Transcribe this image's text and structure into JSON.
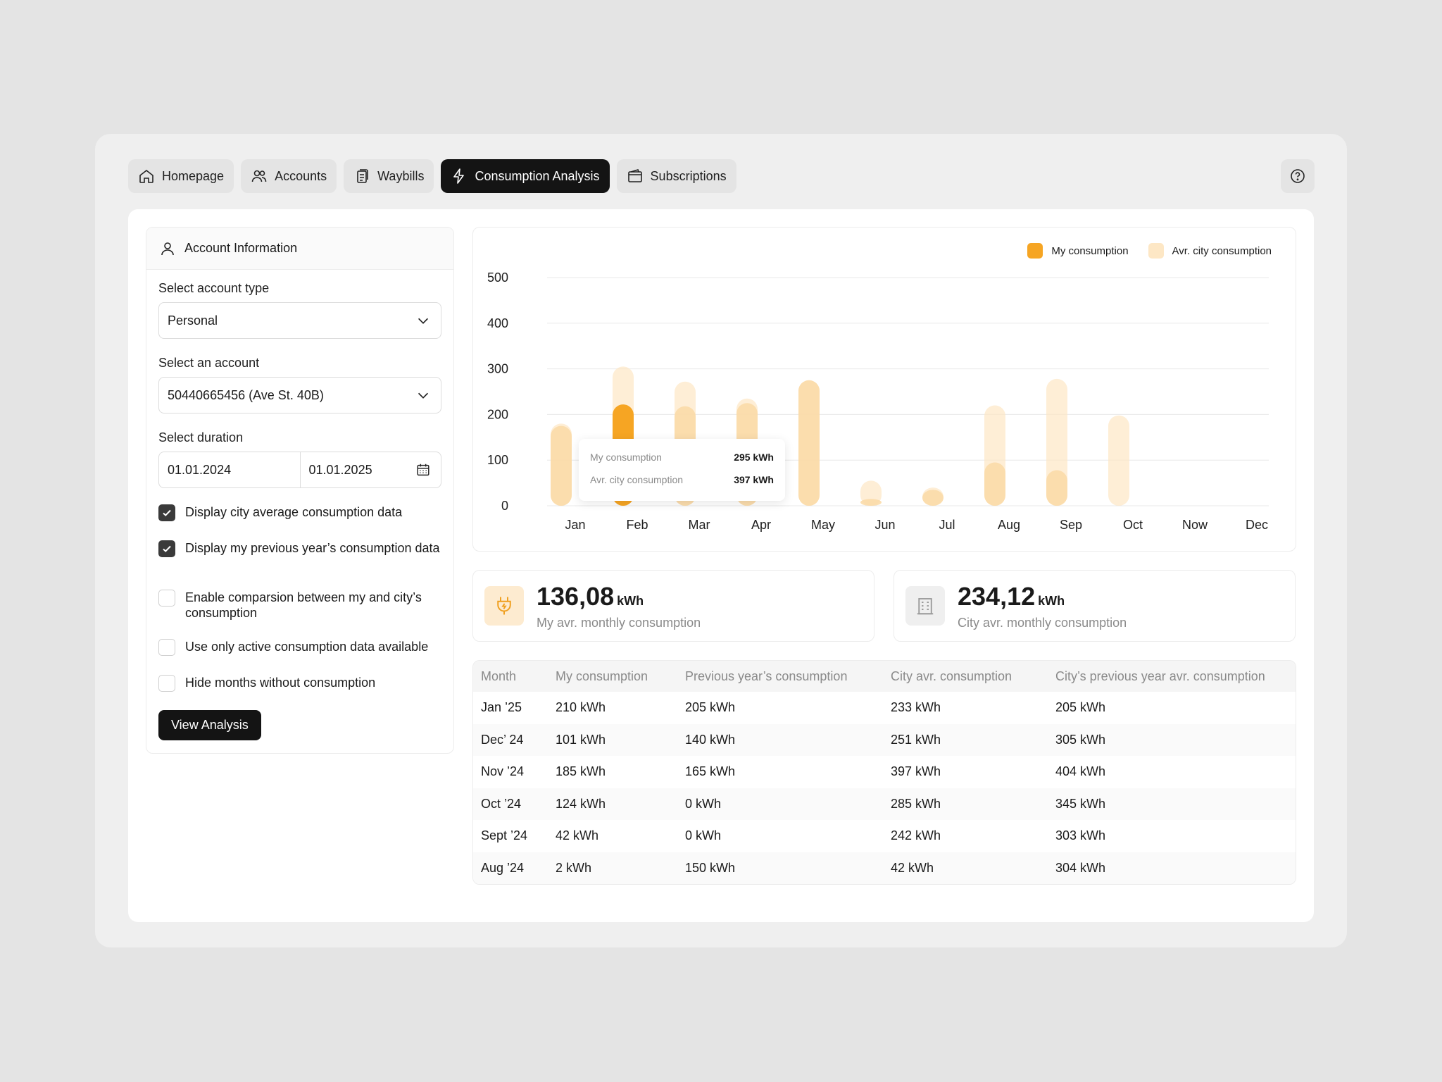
{
  "tabs": [
    {
      "label": "Homepage",
      "icon": "home-icon"
    },
    {
      "label": "Accounts",
      "icon": "users-icon"
    },
    {
      "label": "Waybills",
      "icon": "document-icon"
    },
    {
      "label": "Consumption Analysis",
      "icon": "lightning-icon",
      "active": true
    },
    {
      "label": "Subscriptions",
      "icon": "wallet-icon"
    }
  ],
  "sidebar": {
    "title": "Account Information",
    "account_type_label": "Select account type",
    "account_type_value": "Personal",
    "account_label": "Select an account",
    "account_value": "50440665456 (Ave St. 40B)",
    "duration_label": "Select duration",
    "date_from": "01.01.2024",
    "date_to": "01.01.2025",
    "options": [
      {
        "label": "Display city average consumption data",
        "checked": true
      },
      {
        "label": "Display my previous year’s consumption data",
        "checked": true
      },
      {
        "label": "Enable comparsion between my and city’s consumption",
        "checked": false
      },
      {
        "label": "Use only active consumption data available",
        "checked": false
      },
      {
        "label": "Hide months without consumption",
        "checked": false
      }
    ],
    "button_label": "View Analysis"
  },
  "colors": {
    "mine": "#f6a523",
    "city": "#fde7c5",
    "dark": "#141414"
  },
  "chart_data": {
    "type": "bar",
    "categories": [
      "Jan",
      "Feb",
      "Mar",
      "Apr",
      "May",
      "Jun",
      "Jul",
      "Aug",
      "Sep",
      "Oct",
      "Now",
      "Dec"
    ],
    "series": [
      {
        "name": "My consumption",
        "values": [
          175,
          222,
          218,
          225,
          275,
          15,
          35,
          95,
          78,
          0,
          0,
          0
        ]
      },
      {
        "name": "Avr. city consumption",
        "values": [
          180,
          305,
          272,
          235,
          275,
          55,
          40,
          220,
          278,
          198,
          0,
          0
        ]
      }
    ],
    "yticks": [
      0,
      100,
      200,
      300,
      400,
      500
    ],
    "ylim": [
      0,
      500
    ],
    "legend": "top-right",
    "grid": true,
    "tooltip": {
      "rows": [
        {
          "label": "My consumption",
          "value": "295 kWh"
        },
        {
          "label": "Avr. city consumption",
          "value": "397 kWh"
        }
      ]
    }
  },
  "stats": [
    {
      "value": "136,08",
      "unit": "kWh",
      "label": "My avr. monthly consumption"
    },
    {
      "value": "234,12",
      "unit": "kWh",
      "label": "City avr. monthly consumption"
    }
  ],
  "table": {
    "headers": [
      "Month",
      "My consumption",
      "Previous year’s consumption",
      "City avr. consumption",
      "City’s previous year avr. consumption"
    ],
    "rows": [
      [
        "Jan ’25",
        "210 kWh",
        "205 kWh",
        "233 kWh",
        "205 kWh"
      ],
      [
        "Dec’ 24",
        "101 kWh",
        "140 kWh",
        "251 kWh",
        "305 kWh"
      ],
      [
        "Nov ’24",
        "185 kWh",
        "165 kWh",
        "397 kWh",
        "404 kWh"
      ],
      [
        "Oct ’24",
        "124 kWh",
        "0 kWh",
        "285 kWh",
        "345 kWh"
      ],
      [
        "Sept ’24",
        "42 kWh",
        "0 kWh",
        "242 kWh",
        "303 kWh"
      ],
      [
        "Aug ’24",
        "2 kWh",
        "150 kWh",
        "42 kWh",
        "304 kWh"
      ]
    ]
  }
}
